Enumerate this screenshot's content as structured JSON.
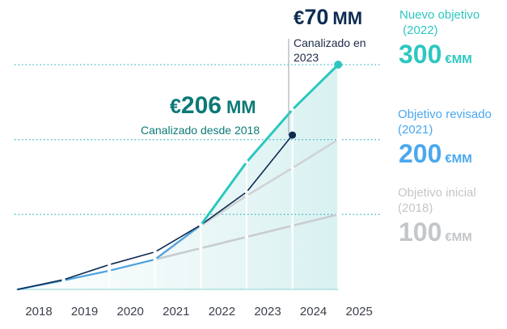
{
  "chart_data": {
    "type": "line",
    "x": [
      "2018",
      "2019",
      "2020",
      "2021",
      "2022",
      "2023",
      "2024",
      "2025"
    ],
    "ylim": [
      0,
      300
    ],
    "grid": "dotted horizontal reference lines at 100, 200 and 300",
    "series": [
      {
        "key": "actual",
        "color": "#0d2b52",
        "values": [
          0,
          13,
          33,
          50,
          86,
          130,
          206,
          null
        ]
      },
      {
        "key": "inicial",
        "color": "#c8ccd0",
        "values": [
          null,
          null,
          null,
          40,
          55,
          70,
          85,
          100
        ]
      },
      {
        "key": "revisado",
        "color": "#cfd2d6",
        "values": [
          null,
          null,
          null,
          40,
          85,
          125,
          162,
          200
        ]
      },
      {
        "key": "revisado_hist",
        "color": "#4aa3e0",
        "values": [
          0,
          12,
          25,
          40,
          86,
          null,
          null,
          null
        ]
      },
      {
        "key": "nuevo",
        "color": "#2dc7c0",
        "values": [
          null,
          null,
          null,
          null,
          86,
          170,
          240,
          310
        ]
      }
    ],
    "annotations": {
      "canalizado_total": {
        "currency": "€",
        "number": "206",
        "unit": "MM",
        "label": "Canalizado desde 2018",
        "color": "#0b7a78"
      },
      "canalizado_2023": {
        "currency": "€",
        "number": "70",
        "unit": "MM",
        "label_line1": "Canalizado en",
        "label_line2": "2023",
        "color": "#0d2b52"
      }
    },
    "targets": [
      {
        "label_line1": "Nuevo objetivo",
        "label_line2": " (2022)",
        "number": "300",
        "unit": "€MM",
        "color": "#2dc7c0"
      },
      {
        "label_line1": "Objetivo revisado",
        "label_line2": "(2021)",
        "number": "200",
        "unit": "€MM",
        "color": "#4aa8ee"
      },
      {
        "label_line1": "Objetivo inicial",
        "label_line2": "(2018)",
        "number": "100",
        "unit": "€MM",
        "color": "#c3c6ca"
      }
    ]
  }
}
